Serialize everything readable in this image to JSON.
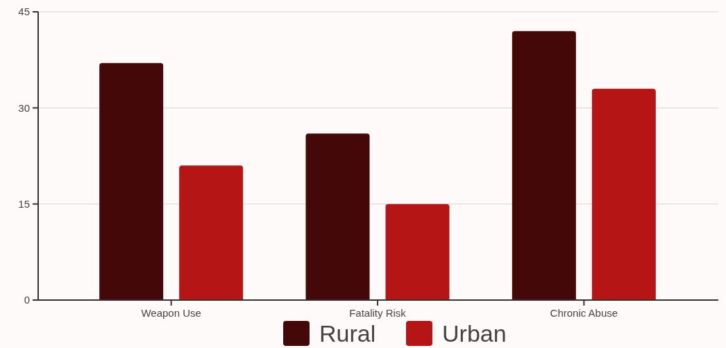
{
  "chart_data": {
    "type": "bar",
    "categories": [
      "Weapon Use",
      "Fatality Risk",
      "Chronic Abuse"
    ],
    "series": [
      {
        "name": "Rural",
        "color": "#450808",
        "values": [
          37,
          26,
          42
        ]
      },
      {
        "name": "Urban",
        "color": "#b51515",
        "values": [
          21,
          15,
          33
        ]
      }
    ],
    "ylim": [
      0,
      45
    ],
    "yticks": [
      0,
      15,
      30,
      45
    ],
    "grid": "y",
    "legend": "bottom"
  }
}
